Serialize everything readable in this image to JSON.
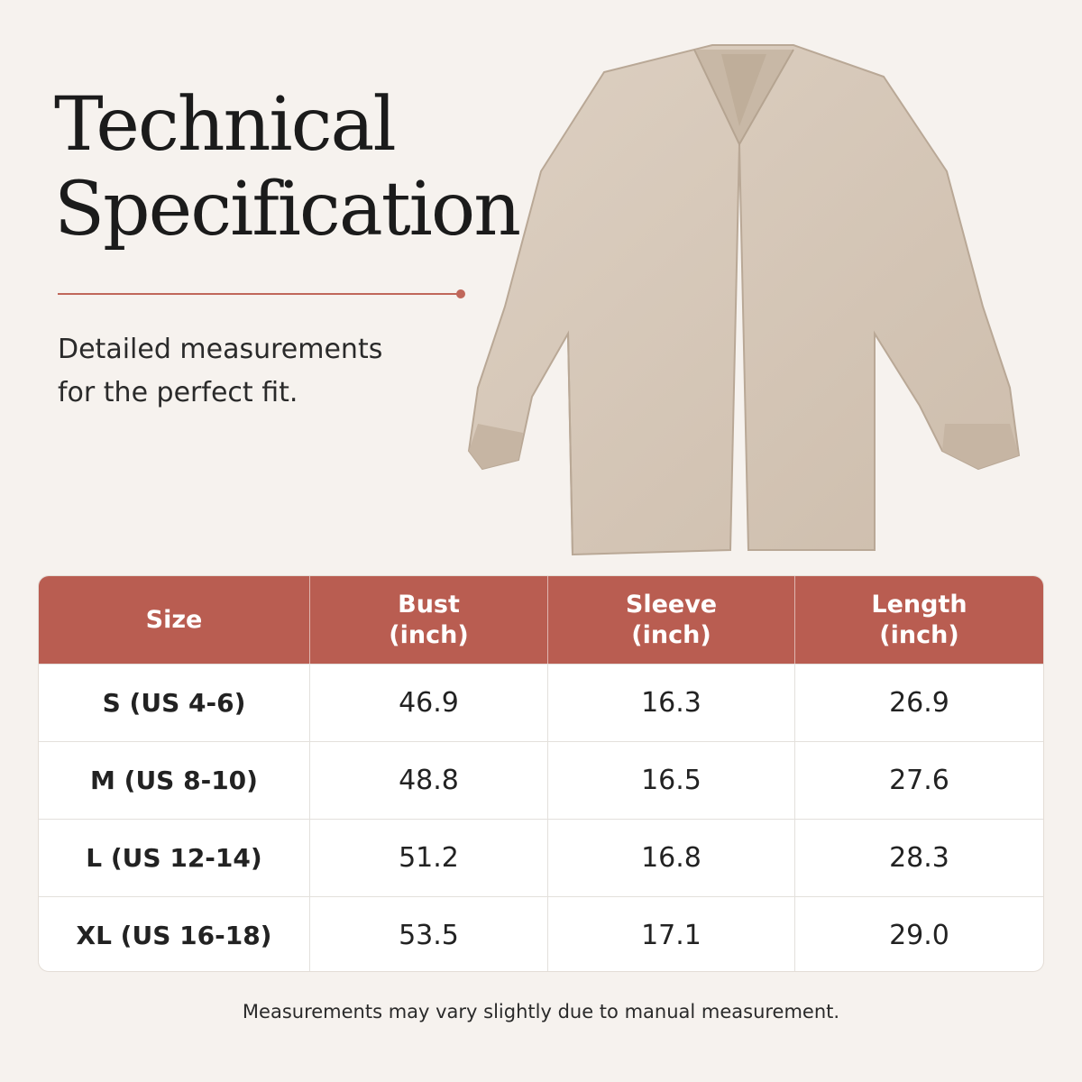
{
  "header": {
    "title_lines": [
      "Technical",
      "Specification"
    ],
    "subtitle_lines": [
      "Detailed measurements",
      "for the perfect fit."
    ]
  },
  "table": {
    "headers": [
      [
        "Size"
      ],
      [
        "Bust",
        "(inch)"
      ],
      [
        "Sleeve",
        "(inch)"
      ],
      [
        "Length",
        "(inch)"
      ]
    ],
    "rows": [
      [
        "S (US 4-6)",
        "46.9",
        "16.3",
        "26.9"
      ],
      [
        "M (US 8-10)",
        "48.8",
        "16.5",
        "27.6"
      ],
      [
        "L (US 12-14)",
        "51.2",
        "16.8",
        "28.3"
      ],
      [
        "XL (US 16-18)",
        "53.5",
        "17.1",
        "29.0"
      ]
    ]
  },
  "footer": {
    "note": "Measurements may vary slightly due to manual measurement."
  }
}
